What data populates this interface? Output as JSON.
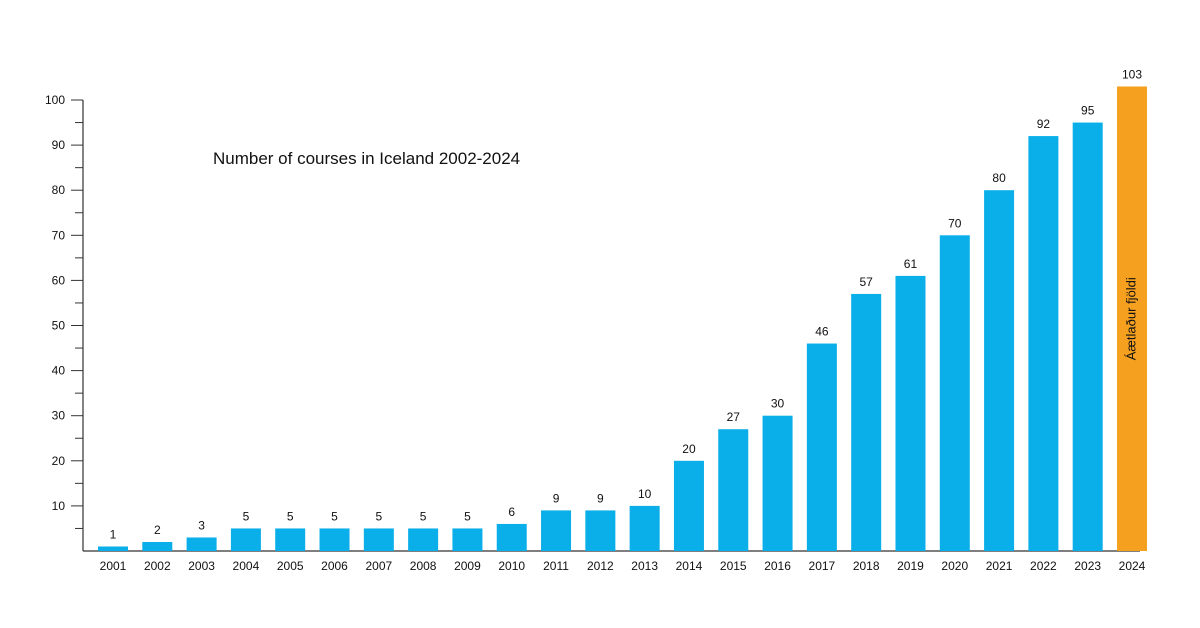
{
  "chart_data": {
    "type": "bar",
    "title": "Number of courses in Iceland 2002-2024",
    "xlabel": "",
    "ylabel": "",
    "ylim": [
      0,
      100
    ],
    "yticks": [
      "10",
      "20",
      "30",
      "40",
      "50",
      "60",
      "70",
      "80",
      "90",
      "100"
    ],
    "categories": [
      "2001",
      "2002",
      "2003",
      "2004",
      "2005",
      "2006",
      "2007",
      "2008",
      "2009",
      "2010",
      "2011",
      "2012",
      "2013",
      "2014",
      "2015",
      "2016",
      "2017",
      "2018",
      "2019",
      "2020",
      "2021",
      "2022",
      "2023",
      "2024"
    ],
    "values": [
      1,
      2,
      3,
      5,
      5,
      5,
      5,
      5,
      5,
      6,
      9,
      9,
      10,
      20,
      27,
      30,
      46,
      57,
      61,
      70,
      80,
      92,
      95,
      103
    ],
    "labels": [
      "1",
      "2",
      "3",
      "5",
      "5",
      "5",
      "5",
      "5",
      "5",
      "6",
      "9",
      "9",
      "10",
      "20",
      "27",
      "30",
      "46",
      "57",
      "61",
      "70",
      "80",
      "92",
      "95",
      "103"
    ],
    "estimated_index": 23,
    "estimated_label": "Áætlaður fjöldi",
    "colors": {
      "bar": "#0aaee8",
      "estimated": "#f6a01f",
      "axis": "#333333"
    }
  }
}
